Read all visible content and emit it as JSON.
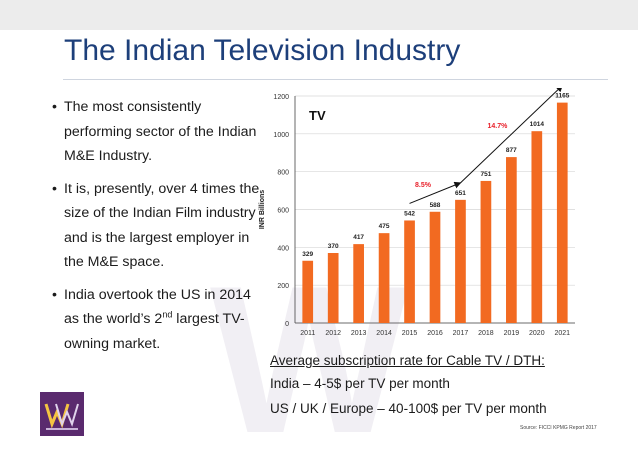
{
  "slide": {
    "title": "The Indian Television Industry",
    "bullets": [
      {
        "text": "The most consistently performing sector of the Indian M&E Industry."
      },
      {
        "text": "It is, presently, over 4 times the size of the Indian Film industry and is the largest employer in the M&E space."
      },
      {
        "text_before": "India overtook the US in 2014 as the world’s 2",
        "sup": "nd",
        "text_after": " largest TV-owning market."
      }
    ],
    "subscription": {
      "heading": "Average subscription rate for Cable TV / DTH:",
      "india": "India – 4-5$ per TV per month",
      "intl": "US / UK / Europe – 40-100$ per TV per month"
    },
    "source": "Source: FICCI KPMG Report 2017",
    "colors": {
      "title": "#1d3f7a",
      "bar": "#f26a21",
      "growth": "#e8202a"
    }
  },
  "chart_data": {
    "type": "bar",
    "title": "TV",
    "ylabel": "INR Billions",
    "xlabel": "",
    "categories": [
      "2011",
      "2012",
      "2013",
      "2014",
      "2015",
      "2016",
      "2017",
      "2018",
      "2019",
      "2020",
      "2021"
    ],
    "values": [
      329,
      370,
      417,
      475,
      542,
      588,
      651,
      751,
      877,
      1014,
      1165
    ],
    "ylim": [
      0,
      1200
    ],
    "yticks": [
      0,
      200,
      400,
      600,
      800,
      1000,
      1200
    ],
    "grid": true,
    "annotations": [
      {
        "text": "8.5%",
        "from": "2015",
        "to": "2017"
      },
      {
        "text": "14.7%",
        "from": "2017",
        "to": "2021"
      }
    ]
  }
}
